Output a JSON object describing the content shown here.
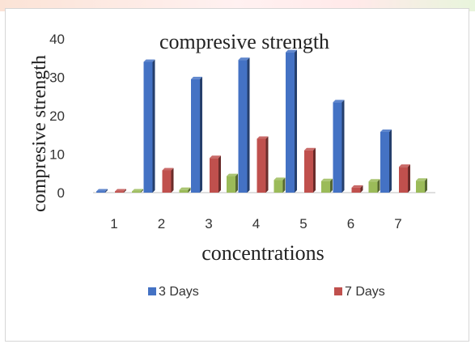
{
  "chart_data": {
    "type": "bar",
    "title": "compresive strength",
    "xlabel": "concentrations",
    "ylabel": "compresive strength",
    "categories": [
      "1",
      "2",
      "3",
      "4",
      "5",
      "6",
      "7"
    ],
    "yticks": [
      "0",
      "10",
      "20",
      "30",
      "40"
    ],
    "ylim": [
      0,
      40
    ],
    "grid": false,
    "legend_position": "bottom",
    "series": [
      {
        "name": "3 Days",
        "color": "#4472c4",
        "values": [
          0,
          34,
          29.5,
          34.5,
          36.5,
          23.5,
          15.8
        ]
      },
      {
        "name": "7 Days",
        "color": "#c0504d",
        "values": [
          0,
          5.8,
          9,
          14,
          11,
          1.3,
          6.7
        ]
      },
      {
        "values": [
          0,
          0.7,
          4.3,
          3.3,
          3,
          2.9,
          3.1
        ]
      }
    ],
    "unlabeled_series_color": "#9bbb59"
  }
}
